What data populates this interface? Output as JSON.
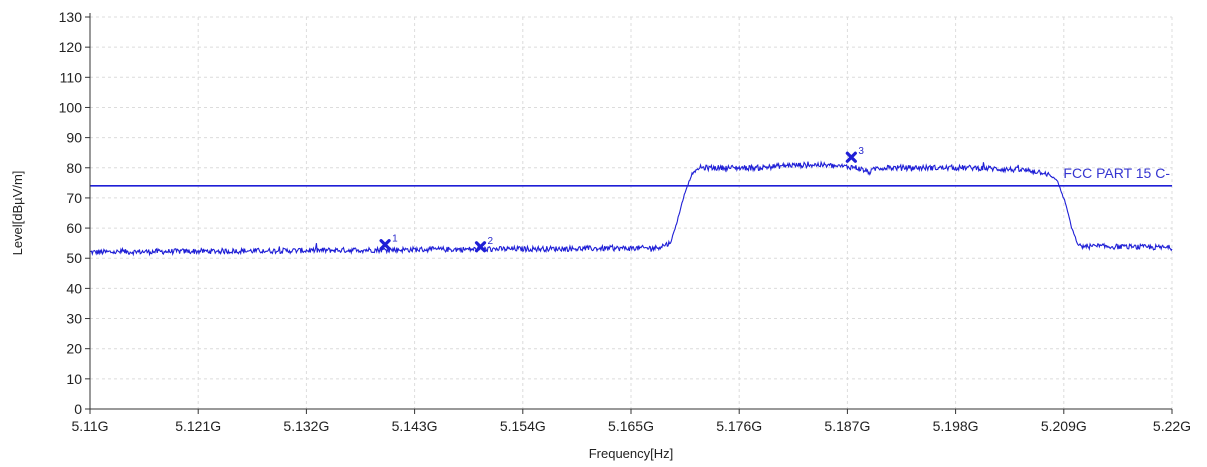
{
  "chart_data": {
    "type": "line",
    "xlabel": "Frequency[Hz]",
    "ylabel": "Level[dBµV/m]",
    "xlim": [
      5.11,
      5.22
    ],
    "ylim": [
      0,
      130
    ],
    "x_unit": "GHz",
    "grid": true,
    "x_tick_values": [
      5.11,
      5.121,
      5.132,
      5.143,
      5.154,
      5.165,
      5.176,
      5.187,
      5.198,
      5.209,
      5.22
    ],
    "x_tick_labels": [
      "5.11G",
      "5.121G",
      "5.132G",
      "5.143G",
      "5.154G",
      "5.165G",
      "5.176G",
      "5.187G",
      "5.198G",
      "5.209G",
      "5.22G"
    ],
    "y_ticks": [
      0,
      10,
      20,
      30,
      40,
      50,
      60,
      70,
      80,
      90,
      100,
      110,
      120,
      130
    ],
    "series": [
      {
        "color": "#1f1fd6",
        "x": [
          5.11,
          5.12,
          5.13,
          5.14,
          5.15,
          5.16,
          5.165,
          5.1675,
          5.169,
          5.1695,
          5.1705,
          5.1712,
          5.172,
          5.178,
          5.181,
          5.184,
          5.186,
          5.1878,
          5.1893,
          5.19,
          5.195,
          5.2,
          5.205,
          5.207,
          5.2083,
          5.2092,
          5.2098,
          5.2105,
          5.215,
          5.22
        ],
        "y": [
          52,
          52.3,
          52.5,
          52.8,
          53,
          53.2,
          53.3,
          53.4,
          55,
          60,
          72,
          78,
          80,
          80,
          80.8,
          81,
          80.5,
          80.2,
          78.5,
          80,
          80,
          80,
          79.2,
          78.5,
          76,
          68,
          60,
          54,
          53.8,
          53.5
        ]
      },
      {
        "name": "FCC PART 15 C-",
        "color": "#1f1fd6",
        "x": [
          5.11,
          5.22
        ],
        "y": [
          74,
          74
        ]
      }
    ],
    "markers": [
      {
        "label": "1",
        "x": 5.14,
        "y": 54.5
      },
      {
        "label": "2",
        "x": 5.1497,
        "y": 53.8
      },
      {
        "label": "3",
        "x": 5.1874,
        "y": 83.5
      }
    ],
    "limit_line_label": "FCC PART 15 C-"
  }
}
